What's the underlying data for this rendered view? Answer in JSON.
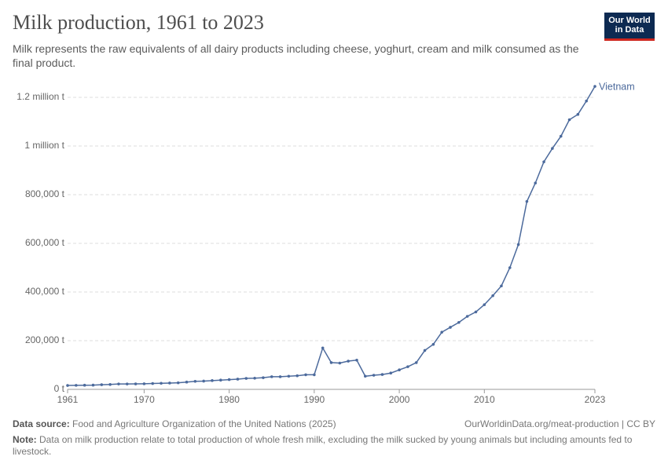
{
  "chart_data": {
    "type": "line",
    "title": "Milk production, 1961 to 2023",
    "subtitle": "Milk represents the raw equivalents of all dairy products including cheese, yoghurt, cream and milk consumed as the final product.",
    "x": [
      1961,
      1962,
      1963,
      1964,
      1965,
      1966,
      1967,
      1968,
      1969,
      1970,
      1971,
      1972,
      1973,
      1974,
      1975,
      1976,
      1977,
      1978,
      1979,
      1980,
      1981,
      1982,
      1983,
      1984,
      1985,
      1986,
      1987,
      1988,
      1989,
      1990,
      1991,
      1992,
      1993,
      1994,
      1995,
      1996,
      1997,
      1998,
      1999,
      2000,
      2001,
      2002,
      2003,
      2004,
      2005,
      2006,
      2007,
      2008,
      2009,
      2010,
      2011,
      2012,
      2013,
      2014,
      2015,
      2016,
      2017,
      2018,
      2019,
      2020,
      2021,
      2022,
      2023
    ],
    "series": [
      {
        "name": "Vietnam",
        "color": "#4c6a9c",
        "values": [
          16000,
          16500,
          17000,
          17500,
          19000,
          20000,
          22000,
          22000,
          22500,
          23000,
          24000,
          25000,
          26000,
          27000,
          30000,
          33000,
          34000,
          36000,
          38000,
          40000,
          42000,
          45000,
          46000,
          48000,
          52000,
          52000,
          54000,
          56000,
          60000,
          60000,
          170000,
          110000,
          108000,
          116000,
          120000,
          54000,
          58000,
          61000,
          67000,
          80000,
          93000,
          110000,
          160000,
          185000,
          235000,
          255000,
          275000,
          300000,
          318000,
          348000,
          385000,
          425000,
          500000,
          595000,
          772000,
          848000,
          935000,
          990000,
          1040000,
          1108000,
          1130000,
          1185000,
          1245000
        ]
      }
    ],
    "xlim": [
      1961,
      2023
    ],
    "xticks": [
      1961,
      1970,
      1980,
      1990,
      2000,
      2010,
      2023
    ],
    "ylim": [
      0,
      1200000
    ],
    "yticks": [
      {
        "value": 0,
        "label": "0 t"
      },
      {
        "value": 200000,
        "label": "200,000 t"
      },
      {
        "value": 400000,
        "label": "400,000 t"
      },
      {
        "value": 600000,
        "label": "600,000 t"
      },
      {
        "value": 800000,
        "label": "800,000 t"
      },
      {
        "value": 1000000,
        "label": "1 million t"
      },
      {
        "value": 1200000,
        "label": "1.2 million t"
      }
    ],
    "grid": true
  },
  "logo": {
    "line1": "Our World",
    "line2": "in Data"
  },
  "footer": {
    "source_label": "Data source:",
    "source": "Food and Agriculture Organization of the United Nations (2025)",
    "url": "OurWorldinData.org/meat-production | CC BY",
    "note_label": "Note:",
    "note": "Data on milk production relate to total production of whole fresh milk, excluding the milk sucked by young animals but including amounts fed to livestock."
  }
}
